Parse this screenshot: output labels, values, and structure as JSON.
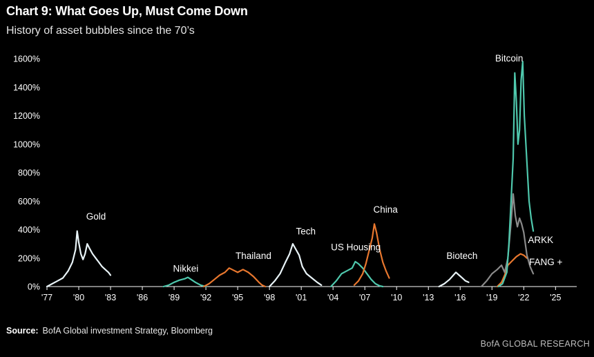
{
  "header": {
    "title": "Chart 9: What Goes Up, Must Come Down",
    "subtitle": "History of asset bubbles since the 70’s"
  },
  "footer": {
    "source_label": "Source:",
    "source_text": "BofA Global investment Strategy, Bloomberg",
    "brand": "BofA GLOBAL RESEARCH"
  },
  "chart_data": {
    "type": "line",
    "ylim": [
      0,
      1600
    ],
    "xlim": [
      1977,
      2027
    ],
    "y_ticks": [
      0,
      200,
      400,
      600,
      800,
      1000,
      1200,
      1400,
      1600
    ],
    "y_tick_labels": [
      "0%",
      "200%",
      "400%",
      "600%",
      "800%",
      "1000%",
      "1200%",
      "1400%",
      "1600%"
    ],
    "x_ticks": [
      1977,
      1980,
      1983,
      1986,
      1989,
      1992,
      1995,
      1998,
      2001,
      2004,
      2007,
      2010,
      2013,
      2016,
      2019,
      2022,
      2025
    ],
    "x_tick_labels": [
      "'77",
      "'80",
      "'83",
      "'86",
      "'89",
      "'92",
      "'95",
      "'98",
      "'01",
      "'04",
      "'07",
      "'10",
      "'13",
      "'16",
      "'19",
      "'22",
      "'25"
    ],
    "colors": {
      "white": "#e9f4f8",
      "teal": "#4fc8ad",
      "orange": "#e8772e",
      "grey": "#8a8a8a"
    },
    "series": [
      {
        "name": "Gold",
        "color": "#e9f4f8",
        "x": [
          1977.0,
          1977.5,
          1978.0,
          1978.5,
          1979.0,
          1979.4,
          1979.7,
          1979.85,
          1980.0,
          1980.2,
          1980.4,
          1980.6,
          1980.8,
          1981.0,
          1981.3,
          1981.6,
          1981.9,
          1982.2,
          1982.5,
          1982.8,
          1983.0
        ],
        "y": [
          0,
          20,
          40,
          60,
          110,
          170,
          260,
          390,
          310,
          230,
          190,
          230,
          300,
          270,
          230,
          200,
          170,
          140,
          120,
          100,
          80
        ]
      },
      {
        "name": "Nikkei",
        "color": "#4fc8ad",
        "x": [
          1988.0,
          1988.5,
          1989.0,
          1989.5,
          1990.0,
          1990.3,
          1990.6,
          1991.0,
          1991.5,
          1992.0
        ],
        "y": [
          0,
          10,
          30,
          45,
          55,
          65,
          50,
          30,
          10,
          0
        ]
      },
      {
        "name": "Thailand",
        "color": "#e8772e",
        "x": [
          1991.8,
          1992.3,
          1992.8,
          1993.3,
          1993.8,
          1994.2,
          1994.6,
          1995.0,
          1995.5,
          1996.0,
          1996.5,
          1997.0,
          1997.3,
          1997.6
        ],
        "y": [
          0,
          20,
          50,
          80,
          100,
          130,
          115,
          100,
          120,
          100,
          70,
          30,
          10,
          0
        ]
      },
      {
        "name": "Tech",
        "color": "#e9f4f8",
        "x": [
          1998.0,
          1998.5,
          1999.0,
          1999.5,
          1999.9,
          2000.2,
          2000.5,
          2000.8,
          2001.1,
          2001.5,
          2002.0,
          2002.5,
          2002.9
        ],
        "y": [
          0,
          40,
          90,
          170,
          230,
          300,
          260,
          220,
          140,
          90,
          60,
          30,
          10
        ]
      },
      {
        "name": "US Housing",
        "color": "#4fc8ad",
        "x": [
          2003.8,
          2004.3,
          2004.8,
          2005.3,
          2005.8,
          2006.1,
          2006.4,
          2006.8,
          2007.2,
          2007.6,
          2008.0,
          2008.4,
          2008.7
        ],
        "y": [
          0,
          40,
          90,
          110,
          130,
          175,
          160,
          130,
          90,
          50,
          20,
          5,
          0
        ]
      },
      {
        "name": "China",
        "color": "#e8772e",
        "x": [
          2006.0,
          2006.4,
          2006.8,
          2007.1,
          2007.4,
          2007.7,
          2007.9,
          2008.1,
          2008.4,
          2008.7,
          2009.0,
          2009.3
        ],
        "y": [
          10,
          40,
          90,
          160,
          250,
          340,
          440,
          380,
          260,
          170,
          110,
          60
        ]
      },
      {
        "name": "Biotech",
        "color": "#e9f4f8",
        "x": [
          2014.0,
          2014.5,
          2015.0,
          2015.3,
          2015.6,
          2015.9,
          2016.2,
          2016.5,
          2016.8
        ],
        "y": [
          0,
          20,
          50,
          75,
          100,
          80,
          60,
          40,
          30
        ]
      },
      {
        "name": "FANG +",
        "color": "#e8772e",
        "x": [
          2019.5,
          2019.9,
          2020.2,
          2020.5,
          2020.9,
          2021.3,
          2021.7,
          2022.0,
          2022.3
        ],
        "y": [
          0,
          30,
          80,
          150,
          180,
          210,
          230,
          220,
          200
        ]
      },
      {
        "name": "ARKK",
        "color": "#8a8a8a",
        "x": [
          2018.0,
          2018.5,
          2019.0,
          2019.5,
          2019.9,
          2020.2,
          2020.5,
          2020.8,
          2021.0,
          2021.2,
          2021.4,
          2021.6,
          2021.8,
          2022.0,
          2022.3,
          2022.6,
          2022.9
        ],
        "y": [
          0,
          40,
          90,
          120,
          150,
          100,
          200,
          450,
          650,
          500,
          420,
          480,
          440,
          380,
          220,
          140,
          90
        ]
      },
      {
        "name": "Bitcoin",
        "color": "#4fc8ad",
        "x": [
          2019.6,
          2020.0,
          2020.4,
          2020.6,
          2020.8,
          2021.0,
          2021.15,
          2021.3,
          2021.45,
          2021.6,
          2021.75,
          2021.9,
          2022.05,
          2022.2,
          2022.35,
          2022.5,
          2022.7,
          2022.9
        ],
        "y": [
          0,
          20,
          100,
          300,
          600,
          900,
          1500,
          1300,
          1000,
          1100,
          1450,
          1580,
          1200,
          1000,
          800,
          600,
          480,
          390
        ]
      }
    ],
    "annotations": [
      {
        "text": "Gold",
        "x": 1980.7,
        "y": 470
      },
      {
        "text": "Nikkei",
        "x": 1988.9,
        "y": 105
      },
      {
        "text": "Thailand",
        "x": 1994.8,
        "y": 195
      },
      {
        "text": "Tech",
        "x": 2000.5,
        "y": 365
      },
      {
        "text": "US Housing",
        "x": 2003.8,
        "y": 255
      },
      {
        "text": "China",
        "x": 2007.8,
        "y": 520
      },
      {
        "text": "Biotech",
        "x": 2014.7,
        "y": 195
      },
      {
        "text": "Bitcoin",
        "x": 2019.3,
        "y": 1580
      },
      {
        "text": "ARKK",
        "x": 2022.4,
        "y": 305
      },
      {
        "text": "FANG +",
        "x": 2022.5,
        "y": 150
      }
    ]
  }
}
